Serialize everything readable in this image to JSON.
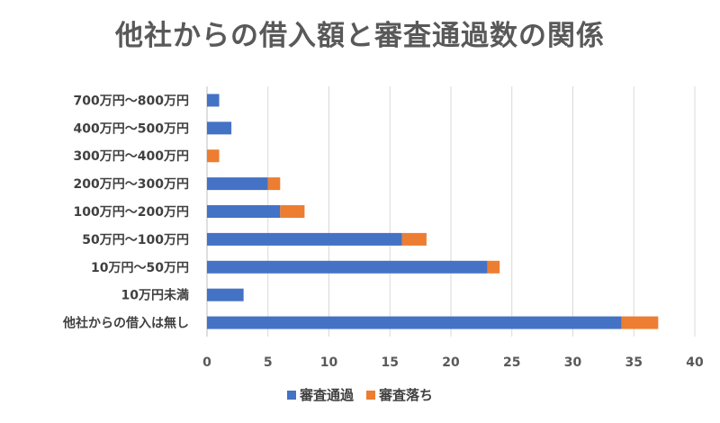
{
  "chart_data": {
    "type": "bar",
    "orientation": "horizontal",
    "stacked": true,
    "title": "他社からの借入額と審査通過数の関係",
    "categories": [
      "700万円〜800万円",
      "400万円〜500万円",
      "300万円〜400万円",
      "200万円〜300万円",
      "100万円〜200万円",
      "50万円〜100万円",
      "10万円〜50万円",
      "10万円未満",
      "他社からの借入は無し"
    ],
    "series": [
      {
        "name": "審査通過",
        "color": "#4472c4",
        "values": [
          1,
          2,
          0,
          5,
          6,
          16,
          23,
          3,
          34
        ]
      },
      {
        "name": "審査落ち",
        "color": "#ed7d31",
        "values": [
          0,
          0,
          1,
          1,
          2,
          2,
          1,
          0,
          3
        ]
      }
    ],
    "xlim": [
      0,
      40
    ],
    "xticks": [
      0,
      5,
      10,
      15,
      20,
      25,
      30,
      35,
      40
    ],
    "grid": true,
    "legend": "bottom"
  }
}
